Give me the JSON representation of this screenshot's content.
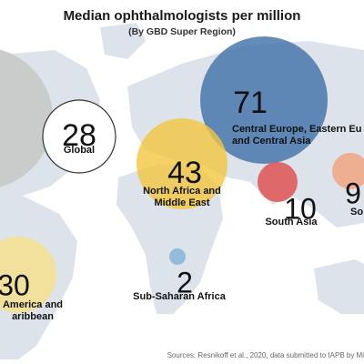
{
  "chart_data": {
    "type": "bubble-map",
    "title": "Median ophthalmologists per million",
    "subtitle": "(By GBD Super Region)",
    "source": "Sources: Resnikoff et al., 2020, data submitted to IAPB by Mi",
    "colors": {
      "land": "#dde3ea",
      "global": "#ffffff",
      "high_income": "#c8c8c8",
      "central_europe": "#3f6fa8",
      "north_africa": "#f3c640",
      "south_asia": "#e04a4a",
      "southeast_asia": "#f2a07a",
      "latin_america": "#f7e08a",
      "sub_saharan": "#7fb0d8"
    },
    "regions": [
      {
        "key": "global",
        "value": "28",
        "label": [
          "Global"
        ]
      },
      {
        "key": "central_europe",
        "value": "71",
        "label": [
          "Central Europe, Eastern Eu",
          "and Central Asia"
        ]
      },
      {
        "key": "north_africa",
        "value": "43",
        "label": [
          "North Africa and",
          "Middle East"
        ]
      },
      {
        "key": "south_asia",
        "value": "10",
        "label": [
          "South Asia"
        ]
      },
      {
        "key": "southeast_asia",
        "value": "9",
        "label": [
          "So"
        ]
      },
      {
        "key": "latin_america",
        "value": "30",
        "label": [
          "America and",
          "aribbean"
        ]
      },
      {
        "key": "sub_saharan",
        "value": "2",
        "label": [
          "Sub-Saharan Africa"
        ]
      }
    ]
  }
}
